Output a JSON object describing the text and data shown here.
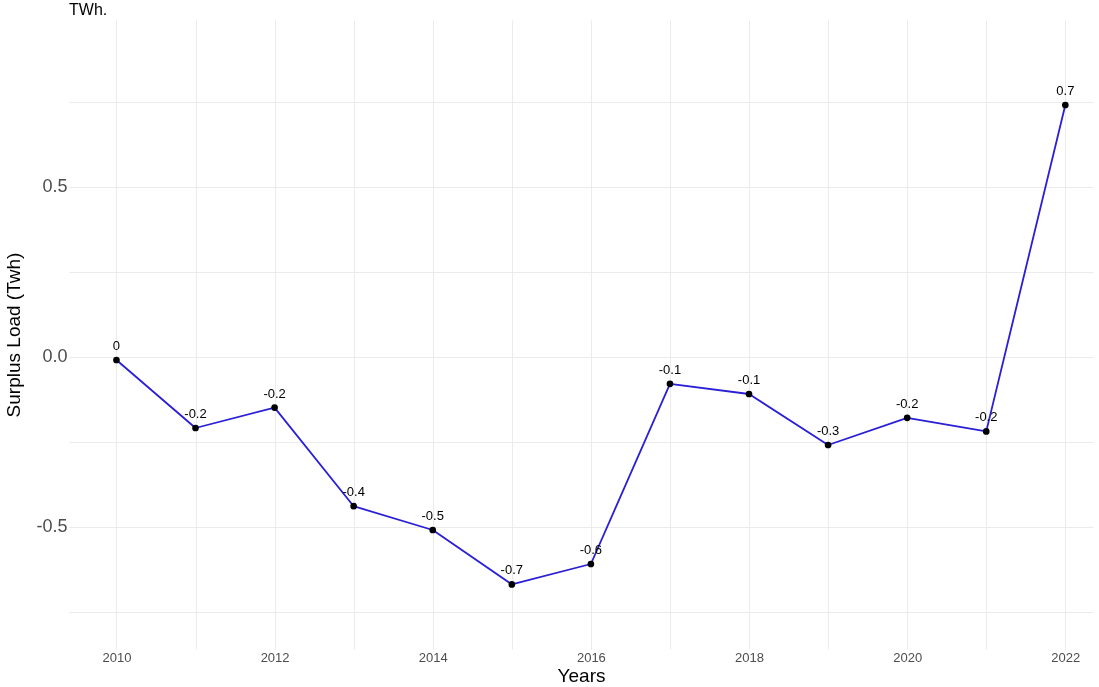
{
  "chart_data": {
    "type": "line",
    "title": "TWh.",
    "xlabel": "Years",
    "ylabel": "Surplus Load (Twh)",
    "x": [
      2010,
      2011,
      2012,
      2013,
      2014,
      2015,
      2016,
      2017,
      2018,
      2019,
      2020,
      2021,
      2022
    ],
    "series": [
      {
        "color": "#2a1fd6",
        "values": [
          -0.01,
          -0.21,
          -0.15,
          -0.44,
          -0.51,
          -0.67,
          -0.61,
          -0.08,
          -0.11,
          -0.26,
          -0.18,
          -0.22,
          0.74
        ],
        "value_labels": [
          "0",
          "-0.2",
          "-0.2",
          "-0.4",
          "-0.5",
          "-0.7",
          "-0.6",
          "-0.1",
          "-0.1",
          "-0.3",
          "-0.2",
          "-0.2",
          "0.7"
        ]
      }
    ],
    "xlim": [
      2009.4,
      2022.35
    ],
    "ylim": [
      -0.86,
      0.99
    ],
    "xticks": [
      2010,
      {
        "value": 2011,
        "label": null
      },
      2012,
      {
        "value": 2013,
        "label": null
      },
      2014,
      {
        "value": 2015,
        "label": null
      },
      2016,
      {
        "value": 2017,
        "label": null
      },
      2018,
      {
        "value": 2019,
        "label": null
      },
      2020,
      {
        "value": 2021,
        "label": null
      },
      2022
    ],
    "yticks": [
      {
        "value": -0.75,
        "label": null
      },
      -0.5,
      {
        "value": -0.25,
        "label": null
      },
      {
        "value": 0,
        "label": "0.0"
      },
      {
        "value": 0.25,
        "label": null
      },
      0.5,
      {
        "value": 0.75,
        "label": null
      }
    ],
    "grid": true,
    "marker": "circle",
    "line_style": "solid"
  }
}
